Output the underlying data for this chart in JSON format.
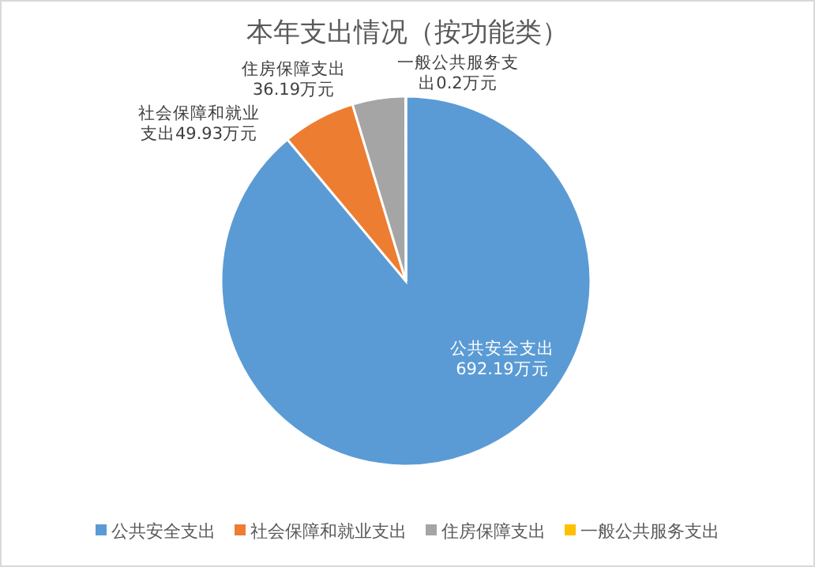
{
  "chart_data": {
    "type": "pie",
    "title": "本年支出情况（按功能类）",
    "categories": [
      "公共安全支出",
      "社会保障和就业支出",
      "住房保障支出",
      "一般公共服务支出"
    ],
    "values": [
      692.19,
      49.93,
      36.19,
      0.2
    ],
    "colors": [
      "#5b9bd5",
      "#ed7d31",
      "#a5a5a5",
      "#ffc000"
    ],
    "value_labels": [
      "公共安全支出692.19万元",
      "社会保障和就业支出49.93万元",
      "住房保障支出36.19万元",
      "一般公共服务支出0.2万元"
    ],
    "legend": "bottom"
  }
}
